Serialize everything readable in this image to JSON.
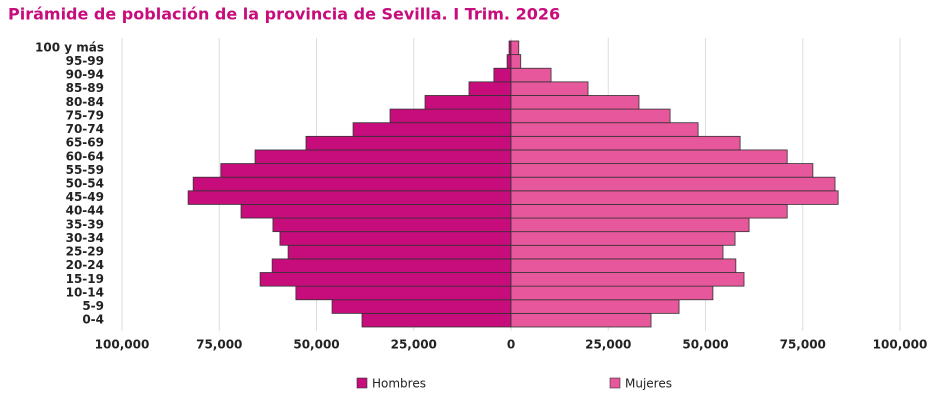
{
  "chart_data": {
    "type": "pyramid",
    "title": "Pirámide de población de la provincia de Sevilla. I Trim. 2026",
    "categories": [
      "0-4",
      "5-9",
      "10-14",
      "15-19",
      "20-24",
      "25-29",
      "30-34",
      "35-39",
      "40-44",
      "45-49",
      "50-54",
      "55-59",
      "60-64",
      "65-69",
      "70-74",
      "75-79",
      "80-84",
      "85-89",
      "90-94",
      "95-99",
      "100 y más"
    ],
    "series": [
      {
        "name": "Hombres",
        "color": "#c70c7c",
        "values": [
          -38300,
          -46000,
          -55300,
          -64500,
          -61400,
          -57300,
          -59400,
          -61200,
          -69400,
          -83000,
          -81700,
          -74600,
          -65800,
          -52700,
          -40600,
          -31100,
          -22100,
          -10800,
          -4400,
          -1000,
          -500
        ]
      },
      {
        "name": "Mujeres",
        "color": "#e6579b",
        "values": [
          36000,
          43200,
          51900,
          59900,
          57800,
          54500,
          57600,
          61200,
          71000,
          84100,
          83300,
          77600,
          71000,
          58900,
          48100,
          40900,
          32900,
          19800,
          10300,
          2500,
          2000
        ]
      }
    ],
    "xlim": [
      -100000,
      100000
    ],
    "xticks": [
      {
        "value": -100000,
        "label": "100,000"
      },
      {
        "value": -75000,
        "label": "75,000"
      },
      {
        "value": -50000,
        "label": "50,000"
      },
      {
        "value": -25000,
        "label": "25,000"
      },
      0,
      {
        "value": 25000,
        "label": "25,000"
      },
      {
        "value": 50000,
        "label": "50,000"
      },
      {
        "value": 75000,
        "label": "75,000"
      },
      {
        "value": 100000,
        "label": "100,000"
      }
    ],
    "grid": true
  }
}
